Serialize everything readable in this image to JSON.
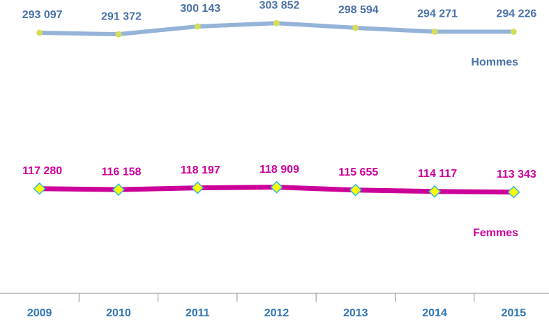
{
  "chart_data": {
    "type": "line",
    "categories": [
      "2009",
      "2010",
      "2011",
      "2012",
      "2013",
      "2014",
      "2015"
    ],
    "ylim": [
      0,
      330000
    ],
    "series": [
      {
        "name": "Hommes",
        "color": "#95b3d7",
        "marker_color": "#d4de5a",
        "marker": "circle",
        "values": [
          293097,
          291372,
          300143,
          303852,
          298594,
          294271,
          294226
        ],
        "value_labels": [
          "293 097",
          "291 372",
          "300 143",
          "303 852",
          "298 594",
          "294 271",
          "294 226"
        ]
      },
      {
        "name": "Femmes",
        "color": "#cc0099",
        "marker_color": "#ffff00",
        "marker": "diamond",
        "values": [
          117280,
          116158,
          118197,
          118909,
          115655,
          114117,
          113343
        ],
        "value_labels": [
          "117 280",
          "116 158",
          "118 197",
          "118 909",
          "115 655",
          "114 117",
          "113 343"
        ]
      }
    ]
  }
}
